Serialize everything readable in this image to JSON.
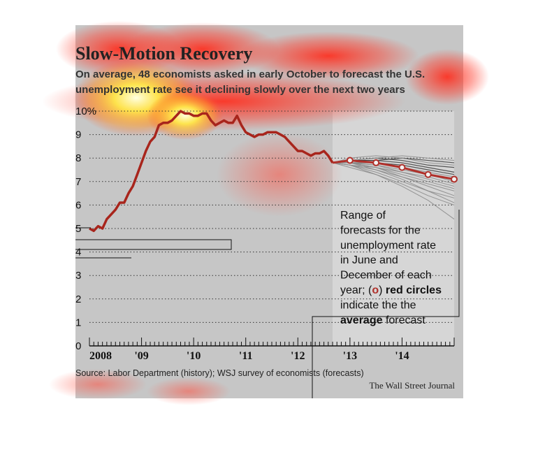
{
  "chart_data": {
    "type": "line",
    "title": "Slow-Motion Recovery",
    "subtitle_lines": [
      "On average, 48 economists asked in early October to forecast the U.S.",
      "unemployment rate see it declining slowly over the next two years"
    ],
    "y_tick_labels": [
      "0",
      "1",
      "2",
      "3",
      "4",
      "5",
      "6",
      "7",
      "8",
      "9",
      "10%"
    ],
    "y_ticks": [
      0,
      1,
      2,
      3,
      4,
      5,
      6,
      7,
      8,
      9,
      10
    ],
    "ylim": [
      0,
      10
    ],
    "x_tick_labels": [
      "2008",
      "'09",
      "'10",
      "'11",
      "'12",
      "'13",
      "'14"
    ],
    "x_ticks": [
      2008,
      2009,
      2010,
      2011,
      2012,
      2013,
      2014
    ],
    "xlim": [
      2008.0,
      2015.0
    ],
    "grid": true,
    "history": {
      "x": [
        2008.0,
        2008.083,
        2008.167,
        2008.25,
        2008.333,
        2008.417,
        2008.5,
        2008.583,
        2008.667,
        2008.75,
        2008.833,
        2008.917,
        2009.0,
        2009.083,
        2009.167,
        2009.25,
        2009.333,
        2009.417,
        2009.5,
        2009.583,
        2009.667,
        2009.75,
        2009.833,
        2009.917,
        2010.0,
        2010.083,
        2010.167,
        2010.25,
        2010.333,
        2010.417,
        2010.5,
        2010.583,
        2010.667,
        2010.75,
        2010.833,
        2010.917,
        2011.0,
        2011.083,
        2011.167,
        2011.25,
        2011.333,
        2011.417,
        2011.5,
        2011.583,
        2011.667,
        2011.75,
        2011.833,
        2011.917,
        2012.0,
        2012.083,
        2012.167,
        2012.25,
        2012.333,
        2012.417,
        2012.5,
        2012.583,
        2012.667
      ],
      "y": [
        5.0,
        4.9,
        5.1,
        5.0,
        5.4,
        5.6,
        5.8,
        6.1,
        6.1,
        6.5,
        6.8,
        7.3,
        7.8,
        8.3,
        8.7,
        8.9,
        9.4,
        9.5,
        9.5,
        9.6,
        9.8,
        10.0,
        9.9,
        9.9,
        9.8,
        9.8,
        9.9,
        9.9,
        9.6,
        9.4,
        9.5,
        9.6,
        9.5,
        9.5,
        9.8,
        9.4,
        9.1,
        9.0,
        8.9,
        9.0,
        9.0,
        9.1,
        9.1,
        9.1,
        9.0,
        8.9,
        8.7,
        8.5,
        8.3,
        8.3,
        8.2,
        8.1,
        8.2,
        8.2,
        8.3,
        8.1,
        7.8
      ]
    },
    "forecast_range_x": [
      2012.667,
      2015.0
    ],
    "forecast_lines": [
      [
        7.9,
        7.9,
        8.0,
        7.9,
        7.8
      ],
      [
        7.9,
        8.0,
        7.9,
        7.7,
        7.6
      ],
      [
        7.9,
        7.9,
        7.8,
        7.6,
        7.4
      ],
      [
        7.8,
        7.8,
        7.7,
        7.5,
        7.3
      ],
      [
        7.8,
        7.8,
        7.6,
        7.4,
        7.2
      ],
      [
        7.8,
        7.7,
        7.5,
        7.3,
        7.1
      ],
      [
        7.9,
        7.8,
        7.6,
        7.3,
        7.0
      ],
      [
        7.8,
        7.7,
        7.4,
        7.2,
        6.9
      ],
      [
        7.7,
        7.6,
        7.4,
        7.1,
        6.8
      ],
      [
        7.8,
        7.6,
        7.3,
        7.0,
        6.7
      ],
      [
        7.7,
        7.5,
        7.2,
        6.9,
        6.6
      ],
      [
        7.8,
        7.6,
        7.2,
        6.8,
        6.4
      ],
      [
        7.7,
        7.4,
        7.0,
        6.6,
        6.3
      ],
      [
        7.8,
        7.5,
        7.1,
        6.6,
        6.1
      ],
      [
        7.7,
        7.3,
        6.9,
        6.4,
        6.0
      ],
      [
        7.6,
        7.3,
        6.8,
        6.2,
        5.4
      ],
      [
        8.0,
        8.1,
        8.0,
        7.8,
        7.7
      ],
      [
        7.9,
        8.0,
        8.1,
        8.0,
        7.9
      ]
    ],
    "forecast_x": [
      2012.667,
      2013.0,
      2013.5,
      2014.0,
      2014.5,
      2015.0
    ],
    "average_forecast": {
      "x": [
        2012.667,
        2013.0,
        2013.5,
        2014.0,
        2014.5,
        2015.0
      ],
      "y": [
        7.8,
        7.9,
        7.8,
        7.6,
        7.3,
        7.1
      ]
    },
    "average_markers_x": [
      2013.0,
      2013.5,
      2014.0,
      2014.5,
      2015.0
    ],
    "colors": {
      "history": "#a8251c",
      "average": "#b0302a",
      "marker_fill": "#f2f2f2",
      "forecast_lines": "#8c8c8c",
      "forecast_lines_dark": "#333333",
      "forecast_shade": "#d6d6d6",
      "plot_background": "#c7c7c7",
      "grid": "#333333",
      "heat_red": "#ff2a1a",
      "heat_yellow": "#ffe84a"
    },
    "annotation": {
      "lines": [
        [
          "Range of"
        ],
        [
          "forecasts for the"
        ],
        [
          "unemployment rate"
        ],
        [
          "in June and"
        ],
        [
          "December of each"
        ],
        [
          "year; (",
          "o",
          ") ",
          "red circles"
        ],
        [
          "indicate the the"
        ],
        [
          "average",
          " forecast"
        ]
      ]
    },
    "source": "Source: Labor Department (history); WSJ survey of economists (forecasts)",
    "credit": "The Wall Street Journal"
  }
}
